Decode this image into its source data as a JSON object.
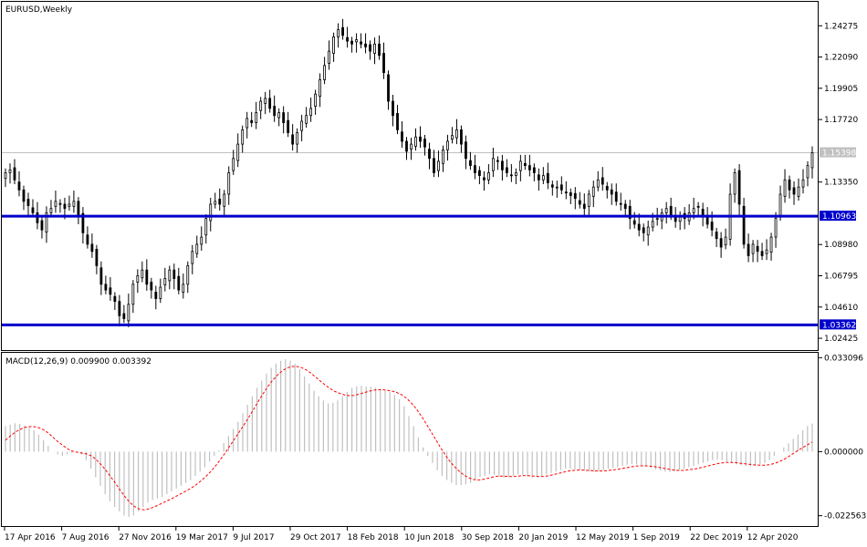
{
  "chart_data": [
    {
      "type": "candlestick",
      "title": "EURUSD,Weekly",
      "symbol": "EURUSD",
      "timeframe": "Weekly",
      "ylim": [
        1.016,
        1.2595
      ],
      "y_ticks": [
        "1.24275",
        "1.22090",
        "1.19905",
        "1.17720",
        "1.13350",
        "1.08980",
        "1.06795",
        "1.04610",
        "1.02425"
      ],
      "current_price": "1.15398",
      "horizontal_levels": [
        {
          "value": "1.10963",
          "color": "#0000cc"
        },
        {
          "value": "1.03362",
          "color": "#0000cc"
        }
      ],
      "x_labels": [
        "17 Apr 2016",
        "7 Aug 2016",
        "27 Nov 2016",
        "19 Mar 2017",
        "9 Jul 2017",
        "29 Oct 2017",
        "18 Feb 2018",
        "10 Jun 2018",
        "30 Sep 2018",
        "20 Jan 2019",
        "12 May 2019",
        "1 Sep 2019",
        "22 Dec 2019",
        "12 Apr 2020"
      ],
      "close_path": [
        1.14,
        1.142,
        1.135,
        1.128,
        1.12,
        1.117,
        1.112,
        1.105,
        1.1,
        1.112,
        1.115,
        1.12,
        1.118,
        1.115,
        1.118,
        1.12,
        1.11,
        1.098,
        1.09,
        1.085,
        1.075,
        1.062,
        1.058,
        1.055,
        1.05,
        1.04,
        1.038,
        1.048,
        1.062,
        1.068,
        1.072,
        1.062,
        1.058,
        1.052,
        1.06,
        1.066,
        1.072,
        1.066,
        1.058,
        1.062,
        1.075,
        1.085,
        1.09,
        1.095,
        1.108,
        1.118,
        1.12,
        1.118,
        1.125,
        1.14,
        1.15,
        1.16,
        1.17,
        1.178,
        1.175,
        1.182,
        1.19,
        1.192,
        1.185,
        1.18,
        1.182,
        1.175,
        1.168,
        1.16,
        1.168,
        1.176,
        1.18,
        1.185,
        1.195,
        1.205,
        1.215,
        1.225,
        1.235,
        1.24,
        1.236,
        1.232,
        1.23,
        1.233,
        1.23,
        1.228,
        1.225,
        1.23,
        1.222,
        1.21,
        1.19,
        1.18,
        1.17,
        1.162,
        1.155,
        1.16,
        1.165,
        1.162,
        1.158,
        1.15,
        1.14,
        1.148,
        1.156,
        1.162,
        1.166,
        1.17,
        1.16,
        1.15,
        1.145,
        1.14,
        1.138,
        1.135,
        1.14,
        1.15,
        1.148,
        1.142,
        1.14,
        1.138,
        1.14,
        1.148,
        1.145,
        1.142,
        1.14,
        1.135,
        1.138,
        1.133,
        1.13,
        1.13,
        1.128,
        1.126,
        1.124,
        1.122,
        1.118,
        1.115,
        1.125,
        1.13,
        1.135,
        1.132,
        1.128,
        1.125,
        1.12,
        1.118,
        1.115,
        1.108,
        1.104,
        1.1,
        1.098,
        1.102,
        1.106,
        1.108,
        1.112,
        1.115,
        1.11,
        1.106,
        1.11,
        1.108,
        1.112,
        1.115,
        1.116,
        1.11,
        1.104,
        1.1,
        1.094,
        1.088,
        1.095,
        1.125,
        1.14,
        1.118,
        1.09,
        1.082,
        1.09,
        1.085,
        1.082,
        1.086,
        1.095,
        1.108,
        1.125,
        1.135,
        1.128,
        1.125,
        1.13,
        1.135,
        1.145,
        1.154
      ],
      "chart_type_lower": "macd",
      "macd_title": "MACD(12,26,9) 0.009900 0.003392",
      "macd_label": "MACD(12,26,9)",
      "macd_value": "0.009900",
      "signal_value": "0.003392",
      "macd_ylim": [
        -0.0262,
        0.0348
      ],
      "macd_ticks": [
        "0.033096",
        "0.000000",
        "-0.022563"
      ],
      "macd_main": [
        0.009,
        0.0095,
        0.01,
        0.0098,
        0.0092,
        0.0085,
        0.0075,
        0.006,
        0.004,
        0.002,
        0.0,
        -0.001,
        -0.0015,
        -0.001,
        -0.0005,
        0.0,
        -0.001,
        -0.003,
        -0.006,
        -0.009,
        -0.012,
        -0.015,
        -0.0175,
        -0.0195,
        -0.021,
        -0.0225,
        -0.023,
        -0.0225,
        -0.021,
        -0.0195,
        -0.018,
        -0.017,
        -0.0165,
        -0.016,
        -0.015,
        -0.014,
        -0.013,
        -0.012,
        -0.011,
        -0.01,
        -0.0085,
        -0.007,
        -0.0055,
        -0.0035,
        -0.0015,
        0.0005,
        0.003,
        0.0055,
        0.008,
        0.0105,
        0.0135,
        0.0165,
        0.0195,
        0.0225,
        0.025,
        0.0275,
        0.0295,
        0.031,
        0.032,
        0.0325,
        0.032,
        0.031,
        0.029,
        0.0265,
        0.024,
        0.0215,
        0.0195,
        0.018,
        0.017,
        0.0172,
        0.018,
        0.0195,
        0.021,
        0.0225,
        0.023,
        0.0232,
        0.023,
        0.0228,
        0.0225,
        0.022,
        0.0215,
        0.021,
        0.02,
        0.0185,
        0.016,
        0.0125,
        0.009,
        0.005,
        0.0015,
        -0.0015,
        -0.004,
        -0.0065,
        -0.0085,
        -0.01,
        -0.011,
        -0.0118,
        -0.0118,
        -0.0115,
        -0.011,
        -0.01,
        -0.009,
        -0.0085,
        -0.008,
        -0.0082,
        -0.0088,
        -0.0092,
        -0.009,
        -0.0085,
        -0.008,
        -0.0082,
        -0.0088,
        -0.0092,
        -0.009,
        -0.0085,
        -0.008,
        -0.0075,
        -0.007,
        -0.0065,
        -0.006,
        -0.006,
        -0.0062,
        -0.0065,
        -0.0068,
        -0.007,
        -0.0072,
        -0.007,
        -0.0065,
        -0.006,
        -0.0058,
        -0.0055,
        -0.005,
        -0.0046,
        -0.0043,
        -0.0045,
        -0.0048,
        -0.0052,
        -0.0058,
        -0.0062,
        -0.0066,
        -0.007,
        -0.0072,
        -0.007,
        -0.0065,
        -0.006,
        -0.0055,
        -0.005,
        -0.0045,
        -0.004,
        -0.0035,
        -0.003,
        -0.0028,
        -0.003,
        -0.0035,
        -0.004,
        -0.0045,
        -0.0048,
        -0.005,
        -0.0052,
        -0.005,
        -0.0045,
        -0.004,
        -0.003,
        -0.0015,
        0.0,
        0.0015,
        0.003,
        0.0045,
        0.006,
        0.0075,
        0.009,
        0.0099
      ],
      "macd_signal": [
        0.004,
        0.0055,
        0.0068,
        0.0078,
        0.0085,
        0.0088,
        0.0088,
        0.0084,
        0.0077,
        0.0065,
        0.005,
        0.0035,
        0.0022,
        0.001,
        0.0002,
        -0.0002,
        -0.0005,
        -0.0008,
        -0.0015,
        -0.0028,
        -0.0045,
        -0.0065,
        -0.0088,
        -0.011,
        -0.0135,
        -0.0158,
        -0.0178,
        -0.0193,
        -0.0202,
        -0.0205,
        -0.0202,
        -0.0196,
        -0.0188,
        -0.018,
        -0.0172,
        -0.0164,
        -0.0155,
        -0.0146,
        -0.0137,
        -0.0127,
        -0.0116,
        -0.0102,
        -0.0087,
        -0.007,
        -0.005,
        -0.0028,
        -0.0005,
        0.002,
        0.0045,
        0.007,
        0.0095,
        0.0122,
        0.015,
        0.0178,
        0.0205,
        0.023,
        0.0252,
        0.027,
        0.0285,
        0.0295,
        0.03,
        0.03,
        0.0296,
        0.0288,
        0.0276,
        0.0262,
        0.0248,
        0.0234,
        0.0222,
        0.0212,
        0.0205,
        0.02,
        0.0197,
        0.0198,
        0.0202,
        0.0207,
        0.0212,
        0.0216,
        0.0218,
        0.0218,
        0.0216,
        0.0213,
        0.0208,
        0.02,
        0.0188,
        0.0172,
        0.0152,
        0.0128,
        0.0102,
        0.0074,
        0.0046,
        0.0018,
        -0.0008,
        -0.0032,
        -0.0052,
        -0.0068,
        -0.0082,
        -0.0092,
        -0.0098,
        -0.01,
        -0.0098,
        -0.0094,
        -0.009,
        -0.0087,
        -0.0086,
        -0.0087,
        -0.0088,
        -0.0087,
        -0.0085,
        -0.0084,
        -0.0085,
        -0.0087,
        -0.0088,
        -0.0087,
        -0.0084,
        -0.008,
        -0.0076,
        -0.0072,
        -0.0068,
        -0.0066,
        -0.0065,
        -0.0065,
        -0.0066,
        -0.0067,
        -0.0068,
        -0.0068,
        -0.0067,
        -0.0065,
        -0.0063,
        -0.006,
        -0.0057,
        -0.0054,
        -0.0051,
        -0.005,
        -0.005,
        -0.0051,
        -0.0053,
        -0.0056,
        -0.0059,
        -0.0062,
        -0.0065,
        -0.0066,
        -0.0066,
        -0.0064,
        -0.0062,
        -0.0059,
        -0.0055,
        -0.0051,
        -0.0047,
        -0.0043,
        -0.004,
        -0.0038,
        -0.0038,
        -0.0039,
        -0.0041,
        -0.0043,
        -0.0045,
        -0.0047,
        -0.0048,
        -0.0048,
        -0.0046,
        -0.0042,
        -0.0036,
        -0.0028,
        -0.0018,
        -0.0007,
        0.0004,
        0.0014,
        0.0024,
        0.0034
      ]
    }
  ],
  "colors": {
    "bull_body": "#ffffff",
    "bear_body": "#000000",
    "wick": "#000000",
    "level_line": "#0000cc",
    "macd_hist": "#c0c0c0",
    "signal": "#ff0000",
    "current_line": "#c0c0c0"
  }
}
